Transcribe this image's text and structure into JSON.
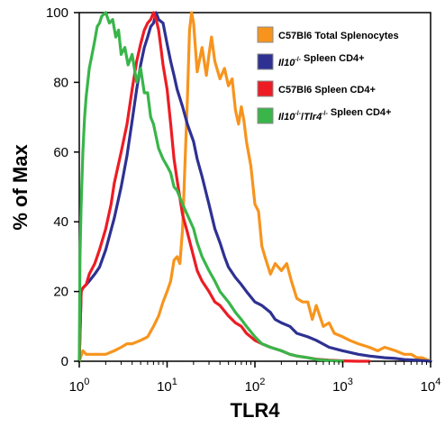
{
  "chart_data": {
    "type": "line",
    "title": "",
    "xlabel": "TLR4",
    "ylabel": "% of Max",
    "xscale": "log",
    "xlim": [
      1,
      10000
    ],
    "ylim": [
      0,
      100
    ],
    "x_ticks": [
      {
        "value": 1,
        "base": "10",
        "exp": "0"
      },
      {
        "value": 10,
        "base": "10",
        "exp": "1"
      },
      {
        "value": 100,
        "base": "10",
        "exp": "2"
      },
      {
        "value": 1000,
        "base": "10",
        "exp": "3"
      },
      {
        "value": 10000,
        "base": "10",
        "exp": "4"
      }
    ],
    "y_ticks": [
      "0",
      "20",
      "40",
      "60",
      "80",
      "100"
    ],
    "grid": false,
    "legend_position": "top-right",
    "series": [
      {
        "name": "C57Bl6 Total Splenocytes",
        "color": "#f7941d",
        "x": [
          1.0,
          1.1,
          1.2,
          1.5,
          2,
          2.5,
          3,
          3.5,
          4,
          5,
          6,
          7,
          8,
          9,
          10,
          11,
          12,
          13,
          14,
          15,
          16,
          17,
          18,
          19,
          20,
          22,
          25,
          28,
          30,
          32,
          35,
          40,
          45,
          50,
          55,
          60,
          65,
          70,
          75,
          80,
          90,
          100,
          110,
          120,
          130,
          150,
          170,
          200,
          230,
          260,
          300,
          350,
          400,
          450,
          500,
          600,
          700,
          800,
          1000,
          1200,
          1500,
          2000,
          2500,
          3000,
          4000,
          5000,
          6000,
          7000,
          8000,
          10000
        ],
        "y": [
          0,
          3,
          2,
          2,
          2,
          3,
          4,
          5,
          5,
          6,
          7,
          10,
          13,
          17,
          20,
          23,
          29,
          30,
          28,
          38,
          57,
          75,
          95,
          100,
          97,
          83,
          90,
          82,
          88,
          93,
          86,
          81,
          84,
          79,
          81,
          72,
          68,
          73,
          69,
          63,
          56,
          45,
          43,
          33,
          30,
          25,
          28,
          26,
          28,
          23,
          18,
          17,
          17,
          12,
          16,
          10,
          11,
          8,
          7,
          6,
          5,
          4,
          3,
          4,
          3,
          2,
          2,
          1,
          1,
          0
        ]
      },
      {
        "name": "Il10-/- Spleen CD4+",
        "color": "#2e3192",
        "x": [
          1.0,
          1.05,
          1.1,
          1.2,
          1.3,
          1.5,
          1.7,
          2,
          2.5,
          3,
          3.5,
          4,
          4.5,
          5,
          5.5,
          6,
          6.5,
          7,
          7.5,
          8,
          9,
          10,
          11,
          12,
          13,
          15,
          17,
          20,
          22,
          25,
          28,
          30,
          35,
          40,
          45,
          50,
          60,
          70,
          80,
          100,
          120,
          150,
          170,
          200,
          250,
          300,
          400,
          500,
          700,
          1000,
          1500,
          2000,
          3000,
          4000,
          5000,
          7000,
          10000
        ],
        "y": [
          0,
          20,
          21,
          22,
          23,
          25,
          27,
          32,
          41,
          50,
          59,
          69,
          78,
          85,
          90,
          93,
          96,
          97,
          100,
          98,
          97,
          91,
          86,
          82,
          78,
          73,
          68,
          63,
          58,
          53,
          48,
          45,
          38,
          34,
          30,
          27,
          24,
          22,
          20,
          17,
          16,
          14,
          12,
          11,
          10,
          8,
          7,
          6,
          4,
          3,
          2,
          1.5,
          1,
          0.8,
          0.5,
          0.3,
          0
        ]
      },
      {
        "name": "C57Bl6 Spleen CD4+",
        "color": "#ed1c24",
        "x": [
          1.0,
          1.05,
          1.1,
          1.2,
          1.3,
          1.5,
          1.7,
          2,
          2.3,
          2.5,
          3,
          3.5,
          4,
          4.5,
          5,
          5.5,
          6,
          6.5,
          7,
          7.5,
          8,
          8.5,
          9,
          10,
          11,
          12,
          13,
          15,
          17,
          20,
          22,
          25,
          30,
          35,
          40,
          50,
          60,
          70,
          80,
          100,
          120,
          150,
          200,
          250,
          300,
          400,
          500,
          700,
          1000,
          1500,
          2000
        ],
        "y": [
          0,
          20,
          21,
          22,
          25,
          28,
          32,
          38,
          45,
          51,
          60,
          68,
          78,
          86,
          91,
          95,
          97,
          98,
          100,
          98,
          95,
          90,
          85,
          78,
          68,
          58,
          52,
          42,
          37,
          30,
          26,
          23,
          20,
          17,
          16,
          13,
          11,
          10,
          8,
          6,
          5,
          4,
          3,
          2,
          1.5,
          1,
          0.6,
          0.3,
          0.1,
          0,
          0
        ]
      },
      {
        "name": "Il10-/-/Tlr4-/- Spleen CD4+",
        "color": "#39b54a",
        "x": [
          1.0,
          1.02,
          1.05,
          1.1,
          1.15,
          1.2,
          1.3,
          1.4,
          1.5,
          1.6,
          1.7,
          1.8,
          2,
          2.2,
          2.4,
          2.6,
          2.8,
          3,
          3.3,
          3.6,
          4,
          4.5,
          5,
          5.5,
          6,
          6.5,
          7,
          8,
          9,
          10,
          11,
          12,
          13,
          15,
          17,
          20,
          22,
          25,
          30,
          35,
          40,
          50,
          60,
          70,
          80,
          100,
          120,
          150,
          200,
          250,
          300,
          400,
          500,
          700,
          1000
        ],
        "y": [
          0,
          30,
          45,
          60,
          70,
          76,
          84,
          88,
          92,
          96,
          97,
          99,
          100,
          97,
          98,
          93,
          95,
          88,
          90,
          85,
          88,
          80,
          84,
          77,
          77,
          70,
          68,
          61,
          58,
          56,
          54,
          50,
          49,
          45,
          42,
          38,
          34,
          30,
          26,
          23,
          20,
          17,
          14,
          12,
          10,
          7,
          5,
          4,
          3,
          2,
          1.5,
          1,
          0.5,
          0.2,
          0
        ]
      }
    ]
  },
  "legend": [
    {
      "prefix": "C57Bl6 Total Splenocytes",
      "gene": "",
      "gene2": "",
      "suffix": "",
      "color": "#f7941d"
    },
    {
      "prefix": "",
      "gene": "Il10",
      "gene2": "",
      "suffix": " Spleen CD4+",
      "color": "#2e3192"
    },
    {
      "prefix": "C57Bl6 Spleen CD4+",
      "gene": "",
      "gene2": "",
      "suffix": "",
      "color": "#ed1c24"
    },
    {
      "prefix": "",
      "gene": "Il10",
      "gene2": "Tlr4",
      "suffix": " Spleen CD4+",
      "color": "#39b54a"
    }
  ],
  "superscript": "-/-"
}
